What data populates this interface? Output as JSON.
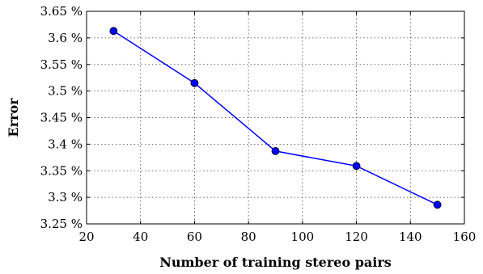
{
  "chart_data": {
    "type": "line",
    "title": "",
    "xlabel": "Number of training stereo pairs",
    "ylabel": "Error",
    "xlim": [
      20,
      160
    ],
    "ylim": [
      3.25,
      3.65
    ],
    "xticks": [
      20,
      40,
      60,
      80,
      100,
      120,
      140,
      160
    ],
    "xtick_labels": [
      "20",
      "40",
      "60",
      "80",
      "100",
      "120",
      "140",
      "160"
    ],
    "yticks": [
      3.25,
      3.3,
      3.35,
      3.4,
      3.45,
      3.5,
      3.55,
      3.6,
      3.65
    ],
    "ytick_labels": [
      "3.25 %",
      "3.3 %",
      "3.35 %",
      "3.4 %",
      "3.45 %",
      "3.5 %",
      "3.55 %",
      "3.6 %",
      "3.65 %"
    ],
    "grid": true,
    "series": [
      {
        "color": "#0000ff",
        "marker": "circle",
        "x": [
          30,
          60,
          90,
          120,
          150
        ],
        "y": [
          3.613,
          3.515,
          3.387,
          3.359,
          3.286
        ]
      }
    ]
  }
}
